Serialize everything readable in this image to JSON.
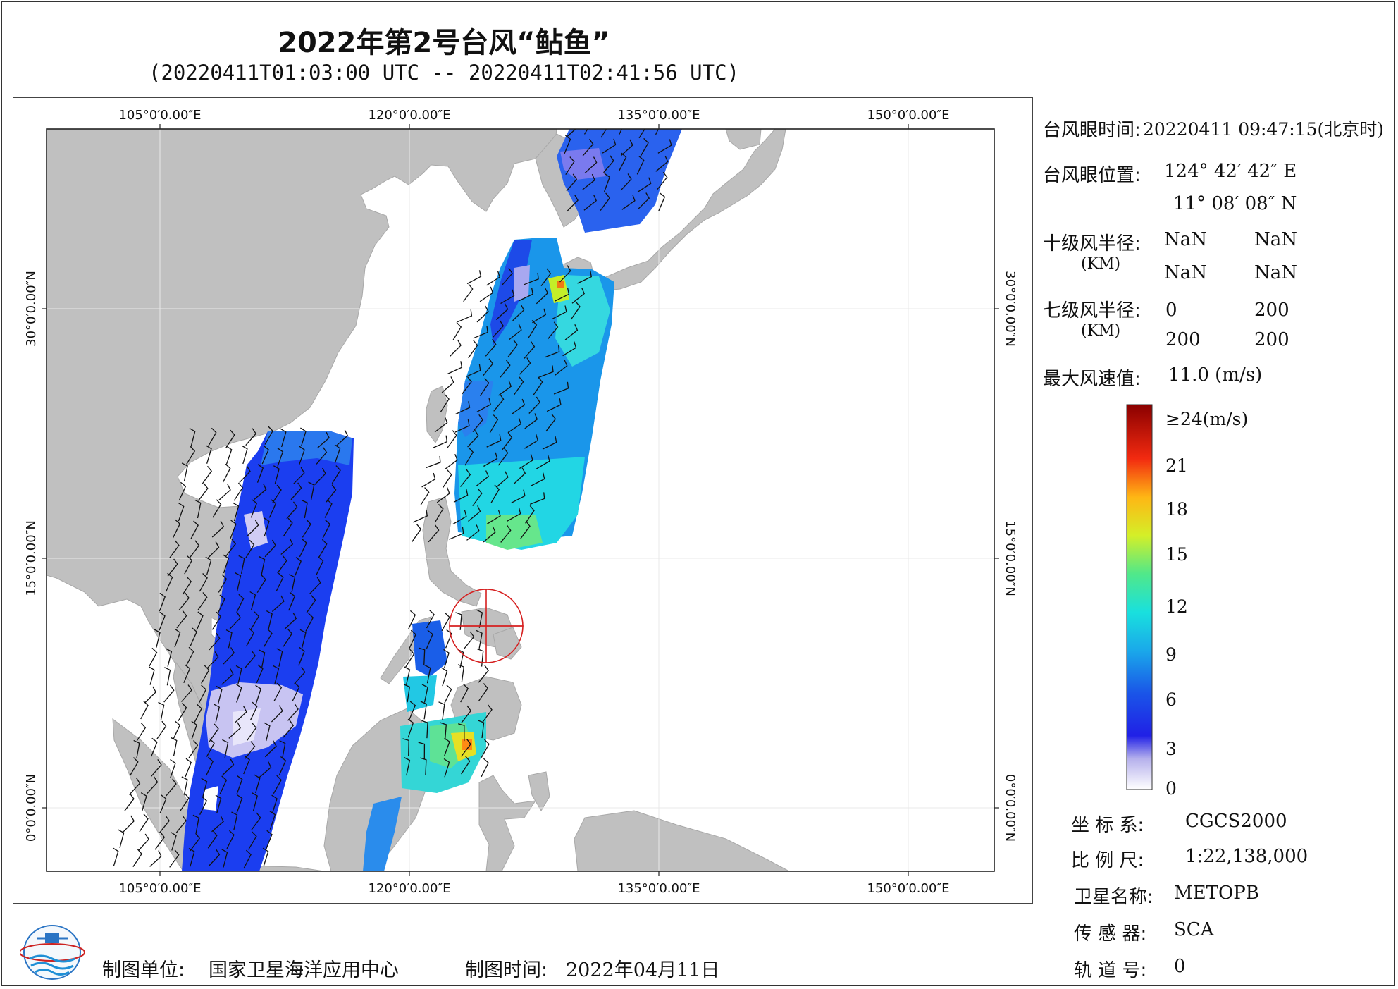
{
  "title": "2022年第2号台风“鲇鱼”",
  "subtitle": "(20220411T01:03:00 UTC -- 20220411T02:41:56 UTC)",
  "map": {
    "lon_labels": [
      "105°0′0.00″E",
      "120°0′0.00″E",
      "135°0′0.00″E",
      "150°0′0.00″E"
    ],
    "lat_labels": [
      "30°0′0.00″N",
      "15°0′0.00″N",
      "0°0′0.00″N"
    ],
    "land_color": "#c0c0c0",
    "typhoon_marker_color": "#d62020"
  },
  "info": {
    "eye_time_label": "台风眼时间:",
    "eye_time_value": "20220411 09:47:15(北京时)",
    "eye_pos_label": "台风眼位置:",
    "eye_lon": "124° 42′ 42″ E",
    "eye_lat": "11° 08′ 08″ N",
    "r10_label": "十级风半径:",
    "r10_unit": "(KM)",
    "r10_values": [
      "NaN",
      "NaN",
      "NaN",
      "NaN"
    ],
    "r7_label": "七级风半径:",
    "r7_unit": "(KM)",
    "r7_values": [
      "0",
      "200",
      "200",
      "200"
    ],
    "max_wind_label": "最大风速值:",
    "max_wind_value": "11.0  (m/s)"
  },
  "colorbar": {
    "top_label": "≥24(m/s)",
    "ticks": [
      "21",
      "18",
      "15",
      "12",
      "9",
      "6",
      "3",
      "0"
    ]
  },
  "meta": {
    "crs_label": "坐 标 系:",
    "crs_value": "CGCS2000",
    "scale_label": "比 例 尺:",
    "scale_value": "1:22,138,000",
    "sat_label": "卫星名称:",
    "sat_value": "METOPB",
    "sensor_label": "传 感 器:",
    "sensor_value": "SCA",
    "orbit_label": "轨 道 号:",
    "orbit_value": "0"
  },
  "footer": {
    "org_label": "制图单位:",
    "org_value": "国家卫星海洋应用中心",
    "date_label": "制图时间:",
    "date_value": "2022年04月11日"
  }
}
